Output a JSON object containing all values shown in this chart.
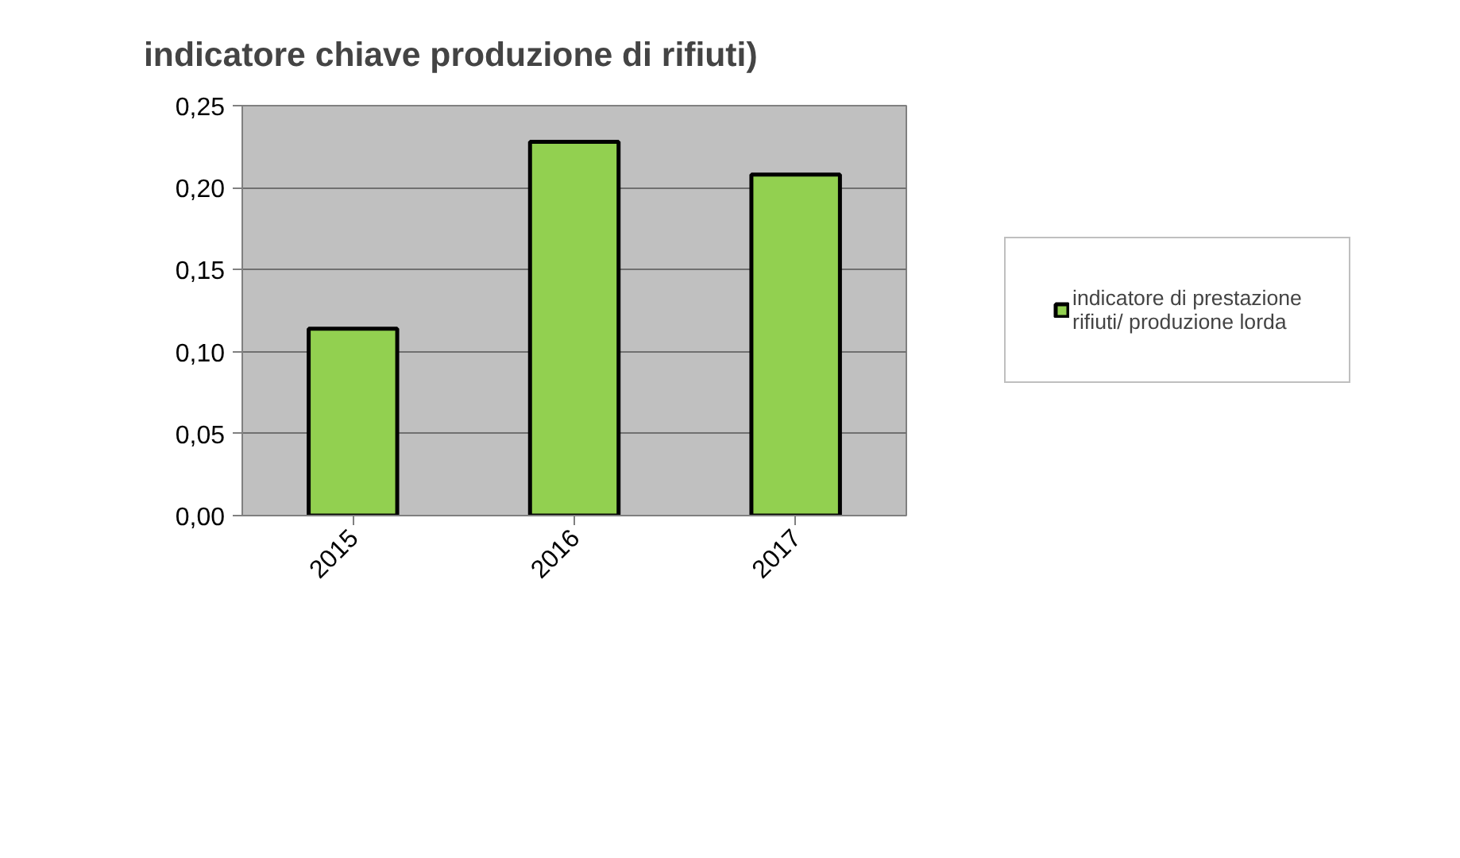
{
  "chart_data": {
    "type": "bar",
    "title": "indicatore chiave produzione di rifiuti)",
    "categories": [
      "2015",
      "2016",
      "2017"
    ],
    "series": [
      {
        "name": "indicatore di prestazione rifiuti/ produzione lorda",
        "color": "#92d050",
        "values": [
          0.114,
          0.228,
          0.208
        ]
      }
    ],
    "ylim": [
      0,
      0.25
    ],
    "yticks": [
      {
        "value": 0,
        "label": "0,00"
      },
      {
        "value": 0.05,
        "label": "0,05"
      },
      {
        "value": 0.1,
        "label": "0,10"
      },
      {
        "value": 0.15,
        "label": "0,15"
      },
      {
        "value": 0.2,
        "label": "0,20"
      },
      {
        "value": 0.25,
        "label": "0,25"
      }
    ],
    "grid": "y",
    "legend": "right"
  }
}
